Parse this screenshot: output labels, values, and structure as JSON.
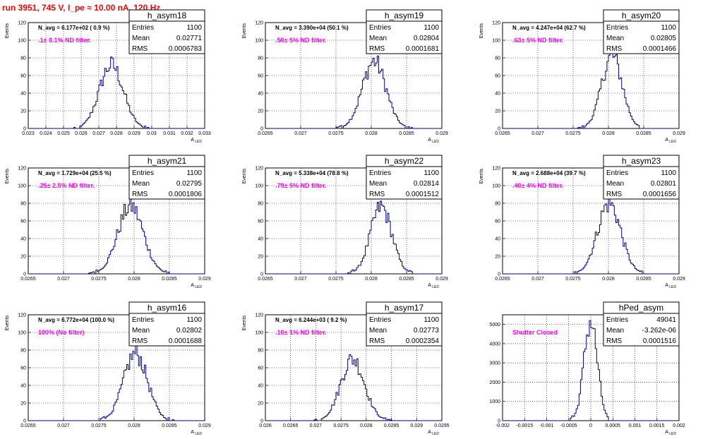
{
  "run_title": "run 3951,   745 V, I_pe ≈ 10.00 nA, 120 Hz",
  "colors": {
    "hist": "#000080",
    "title": "#ff0000",
    "filter": "#ff00ff",
    "grid": "#000000"
  },
  "chart_data": [
    {
      "type": "histogram",
      "name": "h_asym18",
      "n_avg": "N_avg = 6.177e+02 ( 0.9 %)",
      "filter": ".1± 0.1% ND filter.",
      "stats": {
        "entries_label": "Entries",
        "entries": "1100",
        "mean_label": "Mean",
        "mean": "0.02771",
        "rms_label": "RMS",
        "rms": "0.0006783"
      },
      "ylabel": "Events",
      "xlabel": "A",
      "xlim": [
        0.023,
        0.033
      ],
      "ylim": [
        0,
        120
      ],
      "xticks": [
        "0.023",
        "0.024",
        "0.025",
        "0.026",
        "0.027",
        "0.028",
        "0.029",
        "0.03",
        "0.031",
        "0.032",
        "0.033"
      ],
      "yticks": [
        "0",
        "20",
        "40",
        "60",
        "80",
        "100",
        "120"
      ],
      "mean": 0.02771,
      "rms": 0.0006783,
      "peak": 72
    },
    {
      "type": "histogram",
      "name": "h_asym19",
      "n_avg": "N_avg = 3.390e+04 (50.1 %)",
      "filter": ".50± 5% ND filter.",
      "stats": {
        "entries_label": "Entries",
        "entries": "1100",
        "mean_label": "Mean",
        "mean": "0.02804",
        "rms_label": "RMS",
        "rms": "0.0001681"
      },
      "ylabel": "Events",
      "xlabel": "A",
      "xlim": [
        0.0265,
        0.029
      ],
      "ylim": [
        0,
        120
      ],
      "xticks": [
        "0.0265",
        "0.027",
        "0.0275",
        "0.028",
        "0.0285",
        "0.029"
      ],
      "yticks": [
        "0",
        "20",
        "40",
        "60",
        "80",
        "100",
        "120"
      ],
      "mean": 0.02804,
      "rms": 0.0001681,
      "peak": 76
    },
    {
      "type": "histogram",
      "name": "h_asym20",
      "n_avg": "N_avg = 4.247e+04 (62.7 %)",
      "filter": ".63± 5% ND filter.",
      "stats": {
        "entries_label": "Entries",
        "entries": "1100",
        "mean_label": "Mean",
        "mean": "0.02805",
        "rms_label": "RMS",
        "rms": "0.0001466"
      },
      "ylabel": "Events",
      "xlabel": "A",
      "xlim": [
        0.0265,
        0.029
      ],
      "ylim": [
        0,
        120
      ],
      "xticks": [
        "0.0265",
        "0.027",
        "0.0275",
        "0.028",
        "0.0285",
        "0.029"
      ],
      "yticks": [
        "0",
        "20",
        "40",
        "60",
        "80",
        "100",
        "120"
      ],
      "mean": 0.02805,
      "rms": 0.0001466,
      "peak": 82
    },
    {
      "type": "histogram",
      "name": "h_asym21",
      "n_avg": "N_avg = 1.729e+04 (25.5 %)",
      "filter": ".25± 2.5% ND filter.",
      "stats": {
        "entries_label": "Entries",
        "entries": "1100",
        "mean_label": "Mean",
        "mean": "0.02795",
        "rms_label": "RMS",
        "rms": "0.0001806"
      },
      "ylabel": "Events",
      "xlabel": "A",
      "xlim": [
        0.0265,
        0.029
      ],
      "ylim": [
        0,
        120
      ],
      "xticks": [
        "0.0265",
        "0.027",
        "0.0275",
        "0.028",
        "0.0285",
        "0.029"
      ],
      "yticks": [
        "0",
        "20",
        "40",
        "60",
        "80",
        "100",
        "120"
      ],
      "mean": 0.02795,
      "rms": 0.0001806,
      "peak": 77
    },
    {
      "type": "histogram",
      "name": "h_asym22",
      "n_avg": "N_avg = 5.338e+04 (78.8 %)",
      "filter": ".79± 5% ND filter.",
      "stats": {
        "entries_label": "Entries",
        "entries": "1100",
        "mean_label": "Mean",
        "mean": "0.02814",
        "rms_label": "RMS",
        "rms": "0.0001512"
      },
      "ylabel": "Events",
      "xlabel": "A",
      "xlim": [
        0.0265,
        0.029
      ],
      "ylim": [
        0,
        120
      ],
      "xticks": [
        "0.0265",
        "0.027",
        "0.0275",
        "0.028",
        "0.0285",
        "0.029"
      ],
      "yticks": [
        "0",
        "20",
        "40",
        "60",
        "80",
        "100",
        "120"
      ],
      "mean": 0.02814,
      "rms": 0.0001512,
      "peak": 76
    },
    {
      "type": "histogram",
      "name": "h_asym23",
      "n_avg": "N_avg = 2.688e+04 (39.7 %)",
      "filter": ".40± 4% ND filter.",
      "stats": {
        "entries_label": "Entries",
        "entries": "1100",
        "mean_label": "Mean",
        "mean": "0.02801",
        "rms_label": "RMS",
        "rms": "0.0001656"
      },
      "ylabel": "Events",
      "xlabel": "A",
      "xlim": [
        0.0265,
        0.029
      ],
      "ylim": [
        0,
        120
      ],
      "xticks": [
        "0.0265",
        "0.027",
        "0.0275",
        "0.028",
        "0.0285",
        "0.029"
      ],
      "yticks": [
        "0",
        "20",
        "40",
        "60",
        "80",
        "100",
        "120"
      ],
      "mean": 0.02801,
      "rms": 0.0001656,
      "peak": 80
    },
    {
      "type": "histogram",
      "name": "h_asym16",
      "n_avg": "N_avg = 6.772e+04 (100.0 %)",
      "filter": "100% (No filter)",
      "stats": {
        "entries_label": "Entries",
        "entries": "1100",
        "mean_label": "Mean",
        "mean": "0.02802",
        "rms_label": "RMS",
        "rms": "0.0001688"
      },
      "ylabel": "Events",
      "xlabel": "A",
      "xlim": [
        0.0265,
        0.029
      ],
      "ylim": [
        0,
        120
      ],
      "xticks": [
        "0.0265",
        "0.027",
        "0.0275",
        "0.028",
        "0.0285",
        "0.029"
      ],
      "yticks": [
        "0",
        "20",
        "40",
        "60",
        "80",
        "100",
        "120"
      ],
      "mean": 0.02802,
      "rms": 0.0001688,
      "peak": 76
    },
    {
      "type": "histogram",
      "name": "h_asym17",
      "n_avg": "N_avg = 6.244e+03 ( 9.2 %)",
      "filter": ".10± 1% ND filter.",
      "stats": {
        "entries_label": "Entries",
        "entries": "1100",
        "mean_label": "Mean",
        "mean": "0.02773",
        "rms_label": "RMS",
        "rms": "0.0002354"
      },
      "ylabel": "Events",
      "xlabel": "A",
      "xlim": [
        0.026,
        0.0295
      ],
      "ylim": [
        0,
        120
      ],
      "xticks": [
        "0.026",
        "0.0265",
        "0.027",
        "0.0275",
        "0.028",
        "0.0285",
        "0.029",
        "0.0295"
      ],
      "yticks": [
        "0",
        "20",
        "40",
        "60",
        "80",
        "100",
        "120"
      ],
      "mean": 0.02773,
      "rms": 0.0002354,
      "peak": 70
    },
    {
      "type": "histogram",
      "name": "hPed_asym",
      "n_avg": "",
      "filter": "Shutter Closed",
      "stats": {
        "entries_label": "Entries",
        "entries": "49041",
        "mean_label": "Mean",
        "mean": "-3.262e-06",
        "rms_label": "RMS",
        "rms": "0.0001516"
      },
      "ylabel": "",
      "xlabel": "A",
      "xlim": [
        -0.002,
        0.002
      ],
      "ylim": [
        0,
        5500
      ],
      "xticks": [
        "-0.002",
        "-0.0015",
        "-0.001",
        "-0.0005",
        "0",
        "0.0005",
        "0.001",
        "0.0015",
        "0.002"
      ],
      "yticks": [
        "0",
        "1000",
        "2000",
        "3000",
        "4000",
        "5000"
      ],
      "mean": -3.262e-06,
      "rms": 0.0001516,
      "peak": 5150
    }
  ]
}
